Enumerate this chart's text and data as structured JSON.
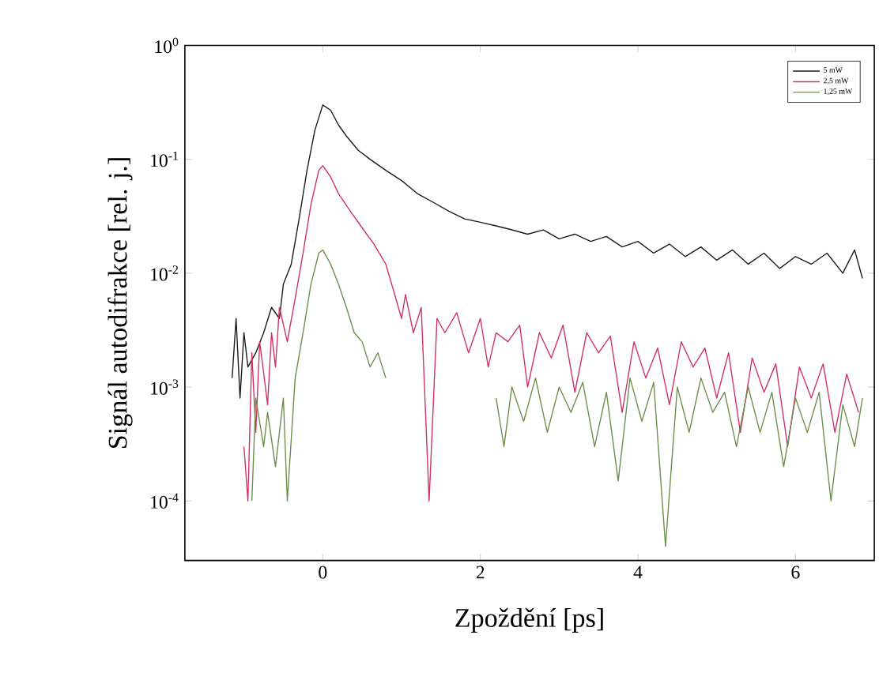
{
  "chart_data": {
    "type": "line",
    "xlabel": "Zpoždění [ps]",
    "ylabel": "Signál autodifrakce [rel. j.]",
    "log": "y",
    "legend": "top right",
    "xlim": [
      -1.75,
      7.0
    ],
    "ylim": [
      3e-05,
      1
    ],
    "xticks": [
      0,
      2,
      4,
      6
    ],
    "yticks": [
      {
        "value": 1,
        "label": "10$^{0}$"
      },
      {
        "value": 0.1,
        "label": "10$^{-1}$"
      },
      {
        "value": 0.01,
        "label": "10$^{-2}$"
      },
      {
        "value": 0.001,
        "label": "10$^{-3}$"
      },
      {
        "value": 0.0001,
        "label": "10$^{-4}$"
      }
    ],
    "series": [
      {
        "name": "5 mW",
        "color": "#1a1a1a",
        "x": [
          -1.15,
          -1.1,
          -1.05,
          -1.0,
          -0.95,
          -0.85,
          -0.75,
          -0.65,
          -0.55,
          -0.5,
          -0.4,
          -0.3,
          -0.2,
          -0.1,
          0,
          0.1,
          0.2,
          0.3,
          0.45,
          0.6,
          0.8,
          1.0,
          1.2,
          1.4,
          1.6,
          1.8,
          2.0,
          2.2,
          2.4,
          2.6,
          2.8,
          3.0,
          3.2,
          3.4,
          3.6,
          3.8,
          4.0,
          4.2,
          4.4,
          4.6,
          4.8,
          5.0,
          5.2,
          5.4,
          5.6,
          5.8,
          6.0,
          6.2,
          6.4,
          6.6,
          6.75,
          6.85
        ],
        "values": [
          0.0012,
          0.004,
          0.0008,
          0.003,
          0.0015,
          0.002,
          0.003,
          0.005,
          0.004,
          0.008,
          0.012,
          0.03,
          0.08,
          0.18,
          0.3,
          0.27,
          0.2,
          0.16,
          0.12,
          0.1,
          0.08,
          0.065,
          0.05,
          0.042,
          0.035,
          0.03,
          0.028,
          0.026,
          0.024,
          0.022,
          0.024,
          0.02,
          0.022,
          0.019,
          0.021,
          0.017,
          0.019,
          0.015,
          0.018,
          0.014,
          0.017,
          0.013,
          0.016,
          0.012,
          0.015,
          0.011,
          0.014,
          0.012,
          0.015,
          0.01,
          0.016,
          0.009
        ]
      },
      {
        "name": "2,5 mW",
        "color": "#d0306a",
        "x": [
          -1.0,
          -0.95,
          -0.9,
          -0.85,
          -0.8,
          -0.7,
          -0.65,
          -0.6,
          -0.55,
          -0.45,
          -0.35,
          -0.25,
          -0.15,
          -0.05,
          0.0,
          0.1,
          0.2,
          0.35,
          0.5,
          0.65,
          0.8,
          0.9,
          1.0,
          1.05,
          1.15,
          1.25,
          1.35,
          1.45,
          1.55,
          1.7,
          1.85,
          2.0,
          2.1,
          2.2,
          2.35,
          2.5,
          2.6,
          2.75,
          2.9,
          3.05,
          3.2,
          3.35,
          3.5,
          3.65,
          3.8,
          3.95,
          4.1,
          4.25,
          4.4,
          4.55,
          4.7,
          4.85,
          5.0,
          5.15,
          5.3,
          5.45,
          5.6,
          5.75,
          5.9,
          6.05,
          6.2,
          6.35,
          6.5,
          6.65,
          6.8
        ],
        "values": [
          0.0003,
          0.0001,
          0.002,
          0.0004,
          0.0025,
          0.0007,
          0.003,
          0.0015,
          0.005,
          0.0025,
          0.006,
          0.015,
          0.04,
          0.08,
          0.088,
          0.07,
          0.05,
          0.035,
          0.025,
          0.018,
          0.012,
          0.007,
          0.004,
          0.0065,
          0.003,
          0.005,
          0.0001,
          0.004,
          0.003,
          0.0045,
          0.002,
          0.004,
          0.0015,
          0.003,
          0.0025,
          0.0035,
          0.001,
          0.003,
          0.0018,
          0.0035,
          0.0009,
          0.003,
          0.002,
          0.0028,
          0.0006,
          0.0025,
          0.0012,
          0.0022,
          0.0007,
          0.0025,
          0.0015,
          0.0022,
          0.0008,
          0.002,
          0.0004,
          0.0018,
          0.0009,
          0.0016,
          0.0003,
          0.0015,
          0.0008,
          0.0016,
          0.0004,
          0.0013,
          0.0006
        ]
      },
      {
        "name": "1,25 mW",
        "color": "#6b8f4a",
        "x": [
          -0.9,
          -0.85,
          -0.75,
          -0.7,
          -0.6,
          -0.5,
          -0.45,
          -0.35,
          -0.25,
          -0.15,
          -0.05,
          0.0,
          0.1,
          0.2,
          0.3,
          0.4,
          0.5,
          0.6,
          0.7,
          0.8,
          1.5,
          2.2,
          2.3,
          2.4,
          2.55,
          2.7,
          2.85,
          3.0,
          3.15,
          3.3,
          3.45,
          3.6,
          3.75,
          3.9,
          4.05,
          4.2,
          4.35,
          4.5,
          4.65,
          4.8,
          4.95,
          5.1,
          5.25,
          5.4,
          5.55,
          5.7,
          5.85,
          6.0,
          6.15,
          6.3,
          6.45,
          6.6,
          6.75,
          6.85
        ],
        "values": [
          0.0001,
          0.0008,
          0.0003,
          0.0006,
          0.0002,
          0.0008,
          0.0001,
          0.0012,
          0.003,
          0.008,
          0.015,
          0.016,
          0.012,
          0.008,
          0.005,
          0.003,
          0.0025,
          0.0015,
          0.002,
          0.0012,
          null,
          0.0008,
          0.0003,
          0.001,
          0.0005,
          0.0012,
          0.0004,
          0.001,
          0.0006,
          0.0011,
          0.0003,
          0.0009,
          0.00015,
          0.0012,
          0.0005,
          0.0011,
          4e-05,
          0.001,
          0.0004,
          0.0012,
          0.0006,
          0.0009,
          0.0003,
          0.001,
          0.0004,
          0.0009,
          0.0002,
          0.0008,
          0.0004,
          0.0009,
          0.0001,
          0.0007,
          0.0003,
          0.0008
        ]
      }
    ]
  }
}
